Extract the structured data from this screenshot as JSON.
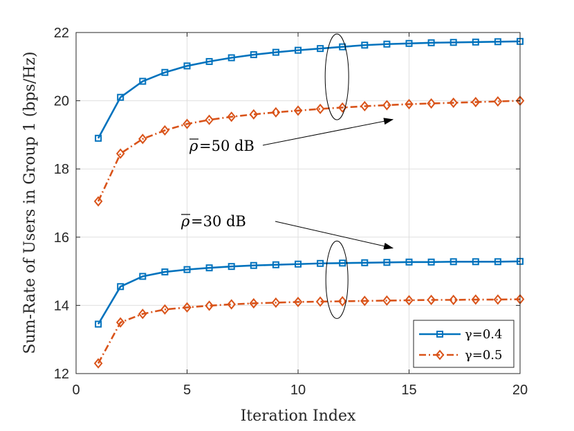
{
  "chart_data": {
    "type": "line",
    "title": "",
    "xlabel": "Iteration Index",
    "ylabel": "Sum-Rate of Users in Group 1 (bps/Hz)",
    "xlim": [
      0,
      20
    ],
    "ylim": [
      12,
      22
    ],
    "xticks": [
      0,
      5,
      10,
      15,
      20
    ],
    "yticks": [
      12,
      14,
      16,
      18,
      20,
      22
    ],
    "grid": true,
    "legend_position": "bottom-right",
    "x": [
      1,
      2,
      3,
      4,
      5,
      6,
      7,
      8,
      9,
      10,
      11,
      12,
      13,
      14,
      15,
      16,
      17,
      18,
      19,
      20
    ],
    "series": [
      {
        "name": "γ=0.4",
        "group": "ρ=50 dB",
        "color": "#0072BD",
        "line_style": "solid",
        "marker": "square",
        "values": [
          18.9,
          20.1,
          20.57,
          20.83,
          21.02,
          21.15,
          21.26,
          21.35,
          21.42,
          21.48,
          21.53,
          21.58,
          21.63,
          21.66,
          21.68,
          21.7,
          21.71,
          21.72,
          21.73,
          21.74
        ]
      },
      {
        "name": "γ=0.5",
        "group": "ρ=50 dB",
        "color": "#D95319",
        "line_style": "dash-dot",
        "marker": "diamond",
        "values": [
          17.05,
          18.45,
          18.88,
          19.13,
          19.32,
          19.44,
          19.53,
          19.6,
          19.66,
          19.71,
          19.76,
          19.8,
          19.84,
          19.87,
          19.9,
          19.92,
          19.94,
          19.96,
          19.98,
          20.0
        ]
      },
      {
        "name": "γ=0.4",
        "group": "ρ=30 dB",
        "color": "#0072BD",
        "line_style": "solid",
        "marker": "square",
        "values": [
          13.45,
          14.55,
          14.85,
          14.98,
          15.05,
          15.1,
          15.14,
          15.17,
          15.19,
          15.21,
          15.23,
          15.24,
          15.25,
          15.26,
          15.27,
          15.27,
          15.28,
          15.28,
          15.28,
          15.29
        ]
      },
      {
        "name": "γ=0.5",
        "group": "ρ=30 dB",
        "color": "#D95319",
        "line_style": "dash-dot",
        "marker": "diamond",
        "values": [
          12.3,
          13.5,
          13.75,
          13.88,
          13.94,
          13.99,
          14.03,
          14.06,
          14.08,
          14.1,
          14.11,
          14.12,
          14.13,
          14.14,
          14.15,
          14.16,
          14.16,
          14.17,
          14.17,
          14.18
        ]
      }
    ],
    "legend": [
      {
        "label": "γ=0.4",
        "color": "#0072BD",
        "marker": "square",
        "line_style": "solid"
      },
      {
        "label": "γ=0.5",
        "color": "#D95319",
        "marker": "diamond",
        "line_style": "dash-dot"
      }
    ],
    "annotations": [
      {
        "label": "=50 dB",
        "symbol": "ρ",
        "ellipse_center": [
          11.75,
          20.7
        ],
        "arrow_to": [
          11.0,
          19.45
        ]
      },
      {
        "label": "=30 dB",
        "symbol": "ρ",
        "ellipse_center": [
          11.75,
          14.75
        ],
        "arrow_to": [
          11.0,
          15.8
        ]
      }
    ]
  }
}
